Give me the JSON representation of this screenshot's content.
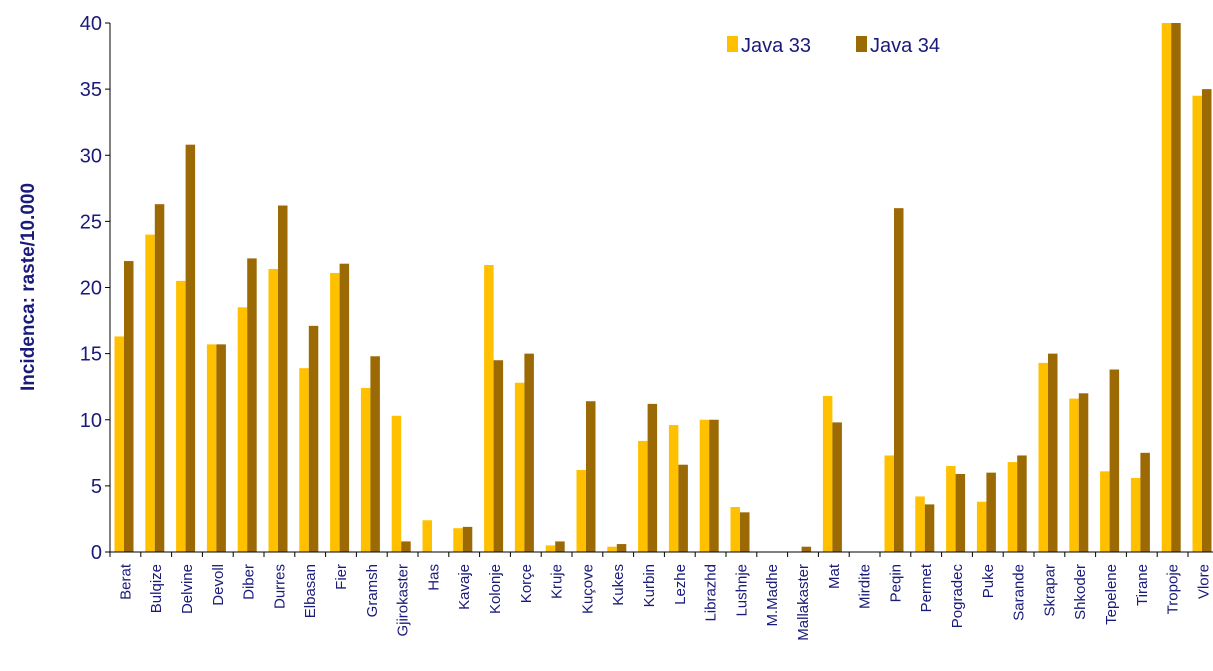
{
  "chart_data": {
    "type": "bar",
    "ylabel": "Incidenca: raste/10.000",
    "ylim": [
      0,
      40
    ],
    "yticks": [
      0,
      5,
      10,
      15,
      20,
      25,
      30,
      35,
      40
    ],
    "legend_position": "top-right",
    "grid": false,
    "categories": [
      "Berat",
      "Bulqize",
      "Delvine",
      "Devoll",
      "Diber",
      "Durres",
      "Elbasan",
      "Fier",
      "Gramsh",
      "Gjirokaster",
      "Has",
      "Kavaje",
      "Kolonje",
      "Korçe",
      "Kruje",
      "Kuçove",
      "Kukes",
      "Kurbin",
      "Lezhe",
      "Librazhd",
      "Lushnje",
      "M.Madhe",
      "Mallakaster",
      "Mat",
      "Mirdite",
      "Peqin",
      "Permet",
      "Pogradec",
      "Puke",
      "Sarande",
      "Skrapar",
      "Shkoder",
      "Tepelene",
      "Tirane",
      "Tropoje",
      "Vlore"
    ],
    "series": [
      {
        "name": "Java 33",
        "color": "#FFC000",
        "values": [
          16.3,
          24.0,
          20.5,
          15.7,
          18.5,
          21.4,
          13.9,
          21.1,
          12.4,
          10.3,
          2.4,
          1.8,
          21.7,
          12.8,
          0.5,
          6.2,
          0.4,
          8.4,
          9.6,
          10.0,
          3.4,
          0,
          0,
          11.8,
          0,
          7.3,
          4.2,
          6.5,
          3.8,
          6.8,
          14.3,
          11.6,
          6.1,
          5.6,
          40,
          34.5
        ]
      },
      {
        "name": "Java 34",
        "color": "#9C6A05",
        "values": [
          22.0,
          26.3,
          30.8,
          15.7,
          22.2,
          26.2,
          17.1,
          21.8,
          14.8,
          0.8,
          0,
          1.9,
          14.5,
          15.0,
          0.8,
          11.4,
          0.6,
          11.2,
          6.6,
          10.0,
          3.0,
          0,
          0.4,
          9.8,
          0,
          26.0,
          3.6,
          5.9,
          6.0,
          7.3,
          15.0,
          12.0,
          13.8,
          7.5,
          40,
          35.0
        ]
      }
    ]
  }
}
